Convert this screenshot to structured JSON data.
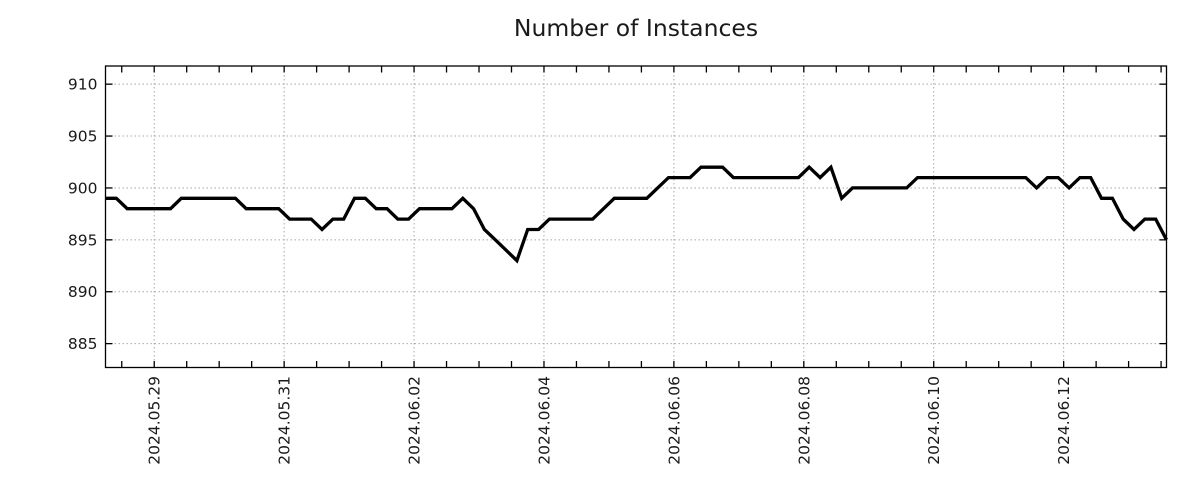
{
  "title": "Number of Instances",
  "colors": {
    "line": "#000000",
    "grid": "#a8a8a8",
    "axis": "#000000",
    "text": "#1a1a1a",
    "background": "#ffffff"
  },
  "chart_data": {
    "type": "line",
    "title": "Number of Instances",
    "series_name": "number-of-instances",
    "grid": true,
    "legend": false,
    "x_axis": {
      "tick_labels": [
        "2024.05.29",
        "2024.05.31",
        "2024.06.02",
        "2024.06.04",
        "2024.06.06",
        "2024.06.08",
        "2024.06.10",
        "2024.06.12"
      ],
      "tick_interval_days": 2,
      "minor_tick_interval_days": 0.5,
      "first_point_offset_days": -0.75,
      "points_per_day": 6
    },
    "y_axis": {
      "ticks": [
        885,
        890,
        895,
        900,
        905,
        910
      ],
      "range": [
        882.7,
        911.75
      ]
    },
    "values": [
      899,
      899,
      898,
      898,
      898,
      898,
      898,
      899,
      899,
      899,
      899,
      899,
      899,
      898,
      898,
      898,
      898,
      897,
      897,
      897,
      896,
      897,
      897,
      899,
      899,
      898,
      898,
      897,
      897,
      898,
      898,
      898,
      898,
      899,
      898,
      896,
      895,
      894,
      893,
      896,
      896,
      897,
      897,
      897,
      897,
      897,
      898,
      899,
      899,
      899,
      899,
      900,
      901,
      901,
      901,
      902,
      902,
      902,
      901,
      901,
      901,
      901,
      901,
      901,
      901,
      902,
      901,
      902,
      899,
      900,
      900,
      900,
      900,
      900,
      900,
      901,
      901,
      901,
      901,
      901,
      901,
      901,
      901,
      901,
      901,
      901,
      900,
      901,
      901,
      900,
      901,
      901,
      899,
      899,
      897,
      896,
      897,
      897,
      895
    ]
  }
}
